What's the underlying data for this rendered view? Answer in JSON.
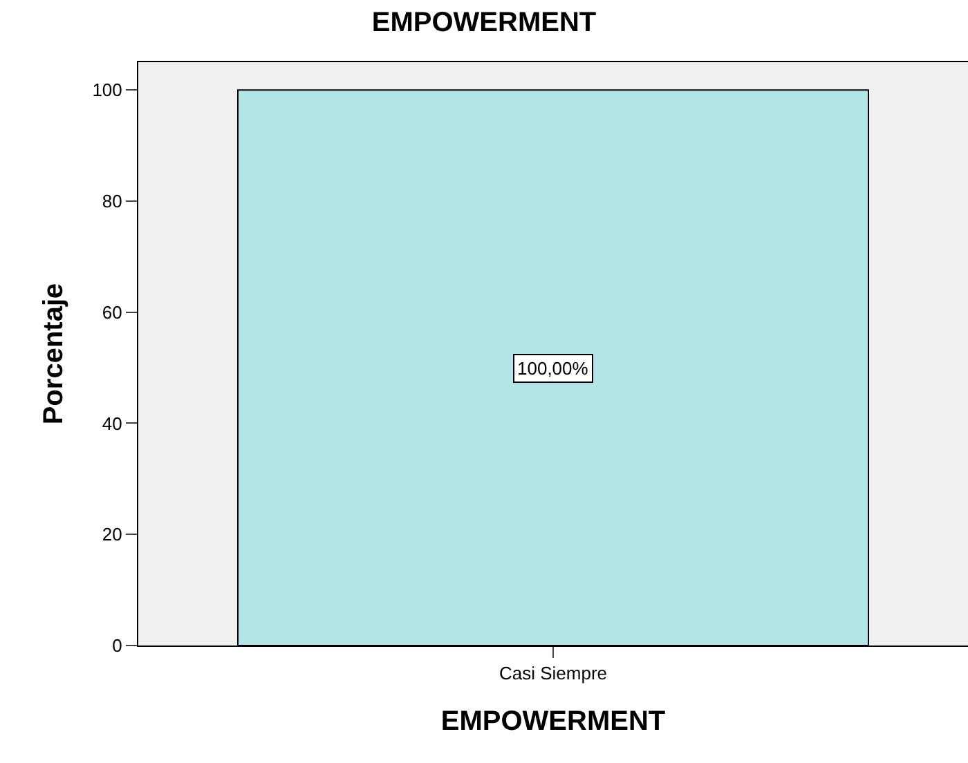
{
  "chart_data": {
    "type": "bar",
    "title": "EMPOWERMENT",
    "xlabel": "EMPOWERMENT",
    "ylabel": "Porcentaje",
    "categories": [
      "Casi Siempre"
    ],
    "values": [
      100
    ],
    "color": "#b3e5e6",
    "value_labels": [
      "100,00%"
    ],
    "ylim": [
      0,
      105
    ],
    "yticks": [
      0,
      20,
      40,
      60,
      80,
      100
    ],
    "grid": false
  }
}
